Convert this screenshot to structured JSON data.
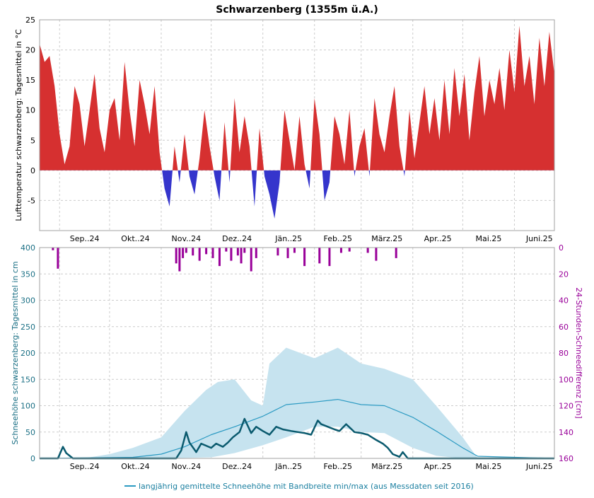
{
  "title": "Schwarzenberg (1355m ü.A.)",
  "months": [
    "Sep..24",
    "Okt..24",
    "Nov..24",
    "Dez..24",
    "Jän..25",
    "Feb..25",
    "März.25",
    "Apr..25",
    "Mai.25",
    "Juni.25"
  ],
  "legend": "langjährig gemittelte Schneehöhe mit Bandbreite min/max (aus Messdaten seit 2016)",
  "colors": {
    "temp_pos": "#d63030",
    "temp_neg": "#3535cc",
    "snow_line": "#0a5a6e",
    "avg_line": "#2b9ac2",
    "band": "#c6e3ef",
    "new_snow": "#990099"
  },
  "chart_data": [
    {
      "type": "area",
      "ylabel": "Lufttemperatur schwarzenberg: Tagesmittel in °C",
      "ylim": [
        -10,
        25
      ],
      "yticks": [
        -5,
        0,
        5,
        10,
        15,
        20,
        25
      ],
      "x_range": [
        "2024-08-20",
        "2025-06-25"
      ],
      "grid": true,
      "series": [
        {
          "x": [
            "2024-08-20",
            "2024-08-23",
            "2024-08-26",
            "2024-08-29",
            "2024-09-01",
            "2024-09-04",
            "2024-09-07",
            "2024-09-10",
            "2024-09-13",
            "2024-09-16",
            "2024-09-19",
            "2024-09-22",
            "2024-09-25",
            "2024-09-28",
            "2024-10-01",
            "2024-10-04",
            "2024-10-07",
            "2024-10-10",
            "2024-10-13",
            "2024-10-16",
            "2024-10-19",
            "2024-10-22",
            "2024-10-25",
            "2024-10-28",
            "2024-10-31",
            "2024-11-03",
            "2024-11-06",
            "2024-11-09",
            "2024-11-12",
            "2024-11-15",
            "2024-11-18",
            "2024-11-21",
            "2024-11-24",
            "2024-11-27",
            "2024-11-30",
            "2024-12-03",
            "2024-12-06",
            "2024-12-09",
            "2024-12-12",
            "2024-12-15",
            "2024-12-18",
            "2024-12-21",
            "2024-12-24",
            "2024-12-27",
            "2024-12-30",
            "2025-01-02",
            "2025-01-05",
            "2025-01-08",
            "2025-01-11",
            "2025-01-14",
            "2025-01-17",
            "2025-01-20",
            "2025-01-23",
            "2025-01-26",
            "2025-01-29",
            "2025-02-01",
            "2025-02-04",
            "2025-02-07",
            "2025-02-10",
            "2025-02-13",
            "2025-02-16",
            "2025-02-19",
            "2025-02-22",
            "2025-02-25",
            "2025-02-28",
            "2025-03-03",
            "2025-03-06",
            "2025-03-09",
            "2025-03-12",
            "2025-03-15",
            "2025-03-18",
            "2025-03-21",
            "2025-03-24",
            "2025-03-27",
            "2025-03-30",
            "2025-04-02",
            "2025-04-05",
            "2025-04-08",
            "2025-04-11",
            "2025-04-14",
            "2025-04-17",
            "2025-04-20",
            "2025-04-23",
            "2025-04-26",
            "2025-04-29",
            "2025-05-02",
            "2025-05-05",
            "2025-05-08",
            "2025-05-11",
            "2025-05-14",
            "2025-05-17",
            "2025-05-20",
            "2025-05-23",
            "2025-05-26",
            "2025-05-29",
            "2025-06-01",
            "2025-06-04",
            "2025-06-07",
            "2025-06-10",
            "2025-06-13",
            "2025-06-16",
            "2025-06-19",
            "2025-06-22",
            "2025-06-25"
          ],
          "y": [
            21,
            18,
            19,
            14,
            6,
            1,
            4,
            14,
            11,
            4,
            10,
            16,
            7,
            3,
            10,
            12,
            5,
            18,
            10,
            4,
            15,
            11,
            6,
            14,
            3,
            -3,
            -6,
            4,
            -2,
            6,
            -1,
            -4,
            2,
            10,
            4,
            -1,
            -5,
            8,
            -2,
            12,
            3,
            9,
            4,
            -6,
            7,
            -1,
            -4,
            -8,
            -2,
            10,
            5,
            0,
            9,
            1,
            -3,
            12,
            6,
            -5,
            -2,
            9,
            6,
            1,
            10,
            -1,
            4,
            7,
            -1,
            12,
            6,
            3,
            9,
            14,
            4,
            -1,
            10,
            2,
            8,
            14,
            6,
            12,
            5,
            15,
            6,
            17,
            9,
            16,
            5,
            13,
            19,
            9,
            15,
            11,
            17,
            10,
            20,
            13,
            24,
            14,
            19,
            11,
            22,
            14,
            23,
            16
          ]
        }
      ]
    },
    {
      "type": "line",
      "ylabel": "Schneehöhe schwarzenberg: Tagesmittel in cm",
      "ylim": [
        0,
        400
      ],
      "yticks": [
        0,
        50,
        100,
        150,
        200,
        250,
        300,
        350,
        400
      ],
      "y2label": "24-Stunden-Schneedifferenz [cm]",
      "y2lim": [
        0,
        160
      ],
      "y2ticks": [
        0,
        20,
        40,
        60,
        80,
        100,
        120,
        140,
        160
      ],
      "y2_inverted": true,
      "x_range": [
        "2024-08-20",
        "2025-06-25"
      ],
      "grid": true,
      "series": [
        {
          "name": "",
          "x": [
            "2024-08-20",
            "2024-08-31",
            "2024-09-03",
            "2024-09-05",
            "2024-09-09",
            "2024-09-12",
            "2024-11-10",
            "2024-11-13",
            "2024-11-16",
            "2024-11-18",
            "2024-11-22",
            "2024-11-25",
            "2024-12-01",
            "2024-12-04",
            "2024-12-08",
            "2024-12-11",
            "2024-12-14",
            "2024-12-18",
            "2024-12-21",
            "2024-12-25",
            "2024-12-28",
            "2025-01-01",
            "2025-01-05",
            "2025-01-09",
            "2025-01-13",
            "2025-01-18",
            "2025-01-22",
            "2025-01-26",
            "2025-01-30",
            "2025-02-03",
            "2025-02-05",
            "2025-02-09",
            "2025-02-13",
            "2025-02-16",
            "2025-02-20",
            "2025-02-25",
            "2025-03-01",
            "2025-03-05",
            "2025-03-10",
            "2025-03-14",
            "2025-03-17",
            "2025-03-20",
            "2025-03-24",
            "2025-03-26",
            "2025-03-29",
            "2025-06-25"
          ],
          "y": [
            0,
            0,
            22,
            10,
            0,
            0,
            0,
            15,
            50,
            30,
            12,
            28,
            20,
            28,
            22,
            30,
            40,
            50,
            75,
            48,
            60,
            52,
            45,
            60,
            55,
            52,
            50,
            48,
            45,
            72,
            65,
            60,
            55,
            52,
            65,
            50,
            48,
            45,
            35,
            28,
            20,
            8,
            3,
            12,
            0,
            0
          ]
        },
        {
          "name": "",
          "x": [
            "2024-08-20",
            "2024-10-15",
            "2024-11-01",
            "2024-11-15",
            "2024-12-01",
            "2024-12-15",
            "2025-01-01",
            "2025-01-15",
            "2025-02-01",
            "2025-02-15",
            "2025-03-01",
            "2025-03-15",
            "2025-04-01",
            "2025-04-15",
            "2025-05-01",
            "2025-05-10",
            "2025-06-25"
          ],
          "y": [
            0,
            2,
            8,
            22,
            45,
            60,
            80,
            102,
            107,
            112,
            102,
            100,
            78,
            52,
            20,
            4,
            0
          ]
        },
        {
          "name": "min",
          "x": [
            "2024-08-20",
            "2024-11-01",
            "2024-12-01",
            "2024-12-15",
            "2025-01-01",
            "2025-01-15",
            "2025-02-01",
            "2025-02-15",
            "2025-03-01",
            "2025-03-15",
            "2025-04-01",
            "2025-04-15",
            "2025-05-01",
            "2025-06-25"
          ],
          "y": [
            0,
            0,
            2,
            10,
            25,
            40,
            60,
            60,
            50,
            48,
            20,
            5,
            0,
            0
          ]
        },
        {
          "name": "max",
          "x": [
            "2024-08-20",
            "2024-09-15",
            "2024-10-01",
            "2024-10-15",
            "2024-11-01",
            "2024-11-15",
            "2024-11-28",
            "2024-12-05",
            "2024-12-15",
            "2024-12-25",
            "2025-01-01",
            "2025-01-05",
            "2025-01-15",
            "2025-02-01",
            "2025-02-15",
            "2025-03-01",
            "2025-03-15",
            "2025-04-01",
            "2025-04-15",
            "2025-05-01",
            "2025-05-10",
            "2025-06-25"
          ],
          "y": [
            0,
            0,
            8,
            20,
            40,
            90,
            130,
            145,
            150,
            110,
            100,
            180,
            210,
            190,
            210,
            180,
            170,
            150,
            100,
            40,
            0,
            0
          ]
        }
      ],
      "new_snow": {
        "x": [
          "2024-08-28",
          "2024-08-31",
          "2024-11-10",
          "2024-11-12",
          "2024-11-14",
          "2024-11-16",
          "2024-11-20",
          "2024-11-24",
          "2024-11-28",
          "2024-12-02",
          "2024-12-06",
          "2024-12-10",
          "2024-12-13",
          "2024-12-17",
          "2024-12-19",
          "2024-12-21",
          "2024-12-25",
          "2024-12-28",
          "2025-01-10",
          "2025-01-16",
          "2025-01-20",
          "2025-01-26",
          "2025-02-04",
          "2025-02-10",
          "2025-02-17",
          "2025-02-22",
          "2025-03-05",
          "2025-03-10",
          "2025-03-22"
        ],
        "y": [
          2,
          16,
          12,
          18,
          8,
          4,
          6,
          10,
          5,
          8,
          14,
          3,
          10,
          6,
          12,
          4,
          18,
          8,
          6,
          8,
          4,
          14,
          12,
          14,
          4,
          3,
          4,
          10,
          8
        ]
      }
    }
  ]
}
